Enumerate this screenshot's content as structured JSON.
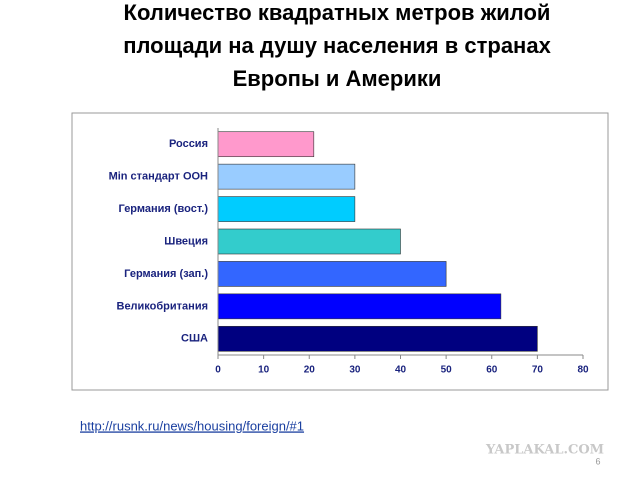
{
  "chart_data": {
    "type": "bar",
    "orientation": "horizontal",
    "title": [
      "Количество квадратных метров жилой",
      "площади на душу населения в странах",
      "Европы и Америки"
    ],
    "categories": [
      "Россия",
      "Min стандарт ООН",
      "Германия (вост.)",
      "Швеция",
      "Германия (зап.)",
      "Великобритания",
      "США"
    ],
    "values": [
      21,
      30,
      30,
      40,
      50,
      62,
      70
    ],
    "colors": [
      "#ff99cc",
      "#99ccff",
      "#00ccff",
      "#33cccc",
      "#3366ff",
      "#0000ff",
      "#000080"
    ],
    "xlim": [
      0,
      80
    ],
    "xticks": [
      0,
      10,
      20,
      30,
      40,
      50,
      60,
      70,
      80
    ],
    "grid": false
  },
  "footer": {
    "link": "http://rusnk.ru/news/housing/foreign/#1",
    "watermark": "YAPLAKAL.COM",
    "page_number": "6"
  }
}
